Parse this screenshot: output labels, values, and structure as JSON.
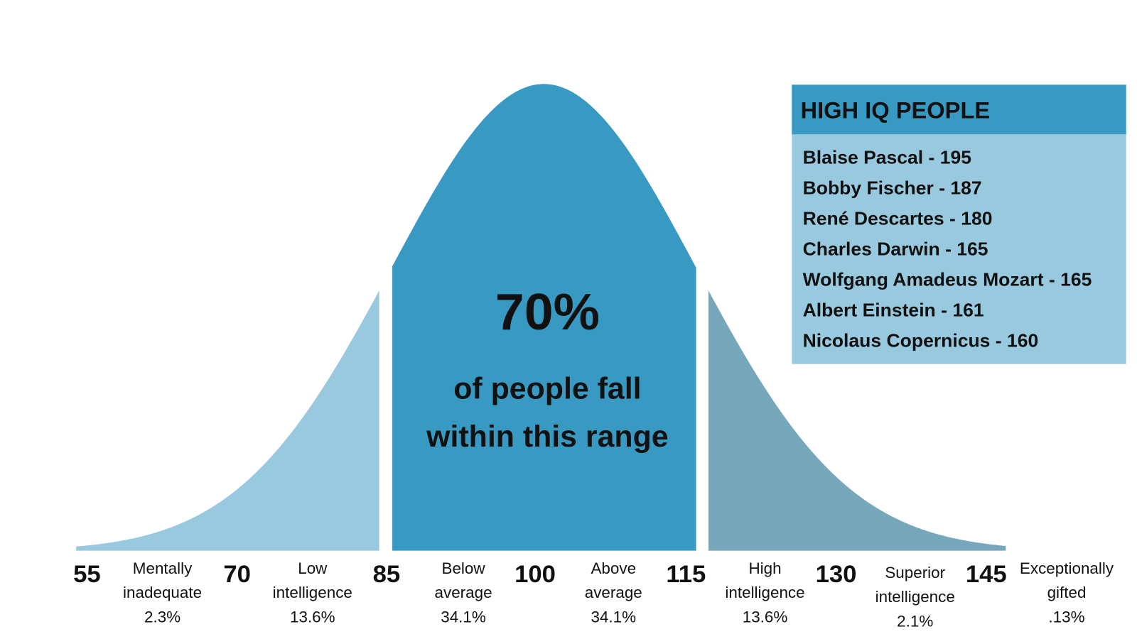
{
  "headline": "70%",
  "caption_lines": [
    "of people fall",
    "within this range"
  ],
  "scale": [
    "55",
    "70",
    "85",
    "100",
    "115",
    "130",
    "145"
  ],
  "bands": [
    {
      "label_lines": [
        "Mentally",
        "inadequate"
      ],
      "share": "2.3%"
    },
    {
      "label_lines": [
        "Low",
        "intelligence"
      ],
      "share": "13.6%"
    },
    {
      "label_lines": [
        "Below",
        "average"
      ],
      "share": "34.1%"
    },
    {
      "label_lines": [
        "Above",
        "average"
      ],
      "share": "34.1%"
    },
    {
      "label_lines": [
        "High",
        "intelligence"
      ],
      "share": "13.6%"
    },
    {
      "label_lines": [
        "Superior",
        "intelligence"
      ],
      "share": "2.1%"
    },
    {
      "label_lines": [
        "Exceptionally",
        "gifted"
      ],
      "share": ".13%"
    }
  ],
  "panel": {
    "title": "HIGH IQ PEOPLE",
    "entries": [
      "Blaise Pascal - 195",
      "Bobby Fischer - 187",
      "René Descartes - 180",
      "Charles Darwin - 165",
      "Wolfgang Amadeus Mozart - 165",
      "Albert Einstein - 161",
      "Nicolaus Copernicus - 160"
    ]
  }
}
